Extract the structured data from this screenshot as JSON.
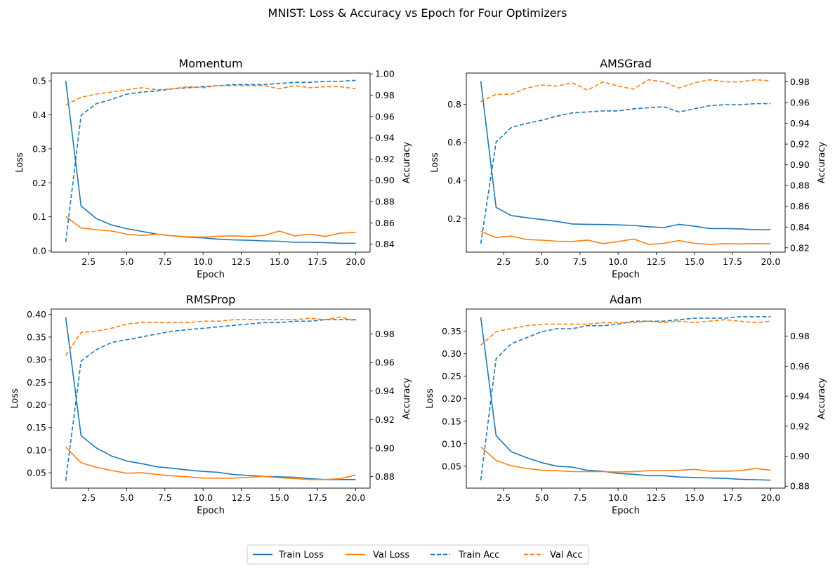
{
  "suptitle": "MNIST: Loss & Accuracy vs Epoch for Four Optimizers",
  "legend": {
    "placement": "bottom-center",
    "entries": [
      {
        "label": "Train Loss",
        "color": "#1f77b4",
        "dash": false
      },
      {
        "label": "Val Loss",
        "color": "#ff7f0e",
        "dash": false
      },
      {
        "label": "Train Acc",
        "color": "#1f77b4",
        "dash": true
      },
      {
        "label": "Val Acc",
        "color": "#ff7f0e",
        "dash": true
      }
    ]
  },
  "chart_data": [
    {
      "type": "line",
      "title": "Momentum",
      "xlabel": "Epoch",
      "ylabel": "Loss",
      "y2label": "Accuracy",
      "xlim": [
        0.05,
        20.95
      ],
      "xticks": [
        2.5,
        5.0,
        7.5,
        10.0,
        12.5,
        15.0,
        17.5,
        20.0
      ],
      "ylim": [
        -0.004,
        0.523
      ],
      "yticks": [
        0.0,
        0.1,
        0.2,
        0.3,
        0.4,
        0.5
      ],
      "ydecimals": 1,
      "y2lim": [
        0.8325,
        1.0008
      ],
      "y2ticks": [
        0.84,
        0.86,
        0.88,
        0.9,
        0.92,
        0.94,
        0.96,
        0.98,
        1.0
      ],
      "y2decimals": 2,
      "x": [
        1,
        2,
        3,
        4,
        5,
        6,
        7,
        8,
        9,
        10,
        11,
        12,
        13,
        14,
        15,
        16,
        17,
        18,
        19,
        20
      ],
      "series": [
        {
          "name": "Train Loss",
          "axis": "left",
          "color": "#1f77b4",
          "dash": false,
          "values": [
            0.5,
            0.132,
            0.095,
            0.076,
            0.065,
            0.057,
            0.049,
            0.044,
            0.04,
            0.038,
            0.034,
            0.032,
            0.031,
            0.029,
            0.028,
            0.025,
            0.025,
            0.024,
            0.022,
            0.022
          ]
        },
        {
          "name": "Val Loss",
          "axis": "left",
          "color": "#ff7f0e",
          "dash": false,
          "values": [
            0.101,
            0.067,
            0.062,
            0.058,
            0.049,
            0.045,
            0.049,
            0.044,
            0.041,
            0.04,
            0.043,
            0.044,
            0.042,
            0.045,
            0.058,
            0.044,
            0.049,
            0.042,
            0.052,
            0.054
          ]
        },
        {
          "name": "Train Acc",
          "axis": "right",
          "color": "#1f77b4",
          "dash": true,
          "values": [
            0.842,
            0.961,
            0.972,
            0.976,
            0.981,
            0.983,
            0.984,
            0.986,
            0.987,
            0.988,
            0.989,
            0.99,
            0.99,
            0.99,
            0.991,
            0.992,
            0.992,
            0.993,
            0.993,
            0.994
          ]
        },
        {
          "name": "Val Acc",
          "axis": "right",
          "color": "#ff7f0e",
          "dash": true,
          "values": [
            0.971,
            0.978,
            0.981,
            0.983,
            0.985,
            0.987,
            0.985,
            0.986,
            0.988,
            0.987,
            0.989,
            0.989,
            0.989,
            0.989,
            0.986,
            0.989,
            0.987,
            0.988,
            0.988,
            0.986
          ]
        }
      ]
    },
    {
      "type": "line",
      "title": "AMSGrad",
      "xlabel": "Epoch",
      "ylabel": "Loss",
      "y2label": "Accuracy",
      "xlim": [
        0.05,
        20.95
      ],
      "xticks": [
        2.5,
        5.0,
        7.5,
        10.0,
        12.5,
        15.0,
        17.5,
        20.0
      ],
      "ylim": [
        0.024,
        0.964
      ],
      "yticks": [
        0.2,
        0.4,
        0.6,
        0.8
      ],
      "ydecimals": 1,
      "y2lim": [
        0.8158,
        0.9885
      ],
      "y2ticks": [
        0.82,
        0.84,
        0.86,
        0.88,
        0.9,
        0.92,
        0.94,
        0.96,
        0.98
      ],
      "y2decimals": 2,
      "x": [
        1,
        2,
        3,
        4,
        5,
        6,
        7,
        8,
        9,
        10,
        11,
        12,
        13,
        14,
        15,
        16,
        17,
        18,
        19,
        20
      ],
      "series": [
        {
          "name": "Train Loss",
          "axis": "left",
          "color": "#1f77b4",
          "dash": false,
          "values": [
            0.922,
            0.259,
            0.216,
            0.205,
            0.195,
            0.185,
            0.172,
            0.17,
            0.169,
            0.167,
            0.164,
            0.157,
            0.153,
            0.17,
            0.16,
            0.148,
            0.148,
            0.146,
            0.142,
            0.142
          ]
        },
        {
          "name": "Val Loss",
          "axis": "left",
          "color": "#ff7f0e",
          "dash": false,
          "values": [
            0.133,
            0.101,
            0.108,
            0.09,
            0.087,
            0.081,
            0.08,
            0.087,
            0.069,
            0.079,
            0.093,
            0.065,
            0.07,
            0.085,
            0.07,
            0.065,
            0.068,
            0.067,
            0.069,
            0.068
          ]
        },
        {
          "name": "Train Acc",
          "axis": "right",
          "color": "#1f77b4",
          "dash": true,
          "values": [
            0.824,
            0.922,
            0.936,
            0.94,
            0.943,
            0.947,
            0.95,
            0.951,
            0.952,
            0.952,
            0.954,
            0.955,
            0.956,
            0.951,
            0.954,
            0.957,
            0.958,
            0.958,
            0.959,
            0.959
          ]
        },
        {
          "name": "Val Acc",
          "axis": "right",
          "color": "#ff7f0e",
          "dash": true,
          "values": [
            0.961,
            0.968,
            0.968,
            0.974,
            0.977,
            0.976,
            0.979,
            0.972,
            0.98,
            0.976,
            0.973,
            0.982,
            0.98,
            0.974,
            0.979,
            0.982,
            0.98,
            0.98,
            0.982,
            0.981
          ]
        }
      ]
    },
    {
      "type": "line",
      "title": "RMSProp",
      "xlabel": "Epoch",
      "ylabel": "Loss",
      "y2label": "Accuracy",
      "xlim": [
        0.05,
        20.95
      ],
      "xticks": [
        2.5,
        5.0,
        7.5,
        10.0,
        12.5,
        15.0,
        17.5,
        20.0
      ],
      "ylim": [
        0.016,
        0.412
      ],
      "yticks": [
        0.05,
        0.1,
        0.15,
        0.2,
        0.25,
        0.3,
        0.35,
        0.4
      ],
      "ydecimals": 2,
      "y2lim": [
        0.8719,
        0.9975
      ],
      "y2ticks": [
        0.88,
        0.9,
        0.92,
        0.94,
        0.96,
        0.98
      ],
      "y2decimals": 2,
      "x": [
        1,
        2,
        3,
        4,
        5,
        6,
        7,
        8,
        9,
        10,
        11,
        12,
        13,
        14,
        15,
        16,
        17,
        18,
        19,
        20
      ],
      "series": [
        {
          "name": "Train Loss",
          "axis": "left",
          "color": "#1f77b4",
          "dash": false,
          "values": [
            0.394,
            0.132,
            0.105,
            0.087,
            0.076,
            0.07,
            0.063,
            0.06,
            0.056,
            0.053,
            0.051,
            0.046,
            0.044,
            0.042,
            0.041,
            0.04,
            0.037,
            0.035,
            0.035,
            0.035
          ]
        },
        {
          "name": "Val Loss",
          "axis": "left",
          "color": "#ff7f0e",
          "dash": false,
          "values": [
            0.107,
            0.072,
            0.062,
            0.055,
            0.049,
            0.05,
            0.046,
            0.043,
            0.041,
            0.038,
            0.038,
            0.038,
            0.04,
            0.042,
            0.039,
            0.037,
            0.035,
            0.035,
            0.037,
            0.045
          ]
        },
        {
          "name": "Train Acc",
          "axis": "right",
          "color": "#1f77b4",
          "dash": true,
          "values": [
            0.877,
            0.961,
            0.969,
            0.974,
            0.976,
            0.978,
            0.98,
            0.982,
            0.983,
            0.984,
            0.985,
            0.986,
            0.987,
            0.988,
            0.988,
            0.989,
            0.989,
            0.99,
            0.99,
            0.99
          ]
        },
        {
          "name": "Val Acc",
          "axis": "right",
          "color": "#ff7f0e",
          "dash": true,
          "values": [
            0.965,
            0.981,
            0.982,
            0.984,
            0.987,
            0.988,
            0.988,
            0.988,
            0.988,
            0.989,
            0.989,
            0.99,
            0.99,
            0.99,
            0.99,
            0.99,
            0.991,
            0.99,
            0.992,
            0.989
          ]
        }
      ]
    },
    {
      "type": "line",
      "title": "Adam",
      "xlabel": "Epoch",
      "ylabel": "Loss",
      "y2label": "Accuracy",
      "xlim": [
        0.05,
        20.95
      ],
      "xticks": [
        2.5,
        5.0,
        7.5,
        10.0,
        12.5,
        15.0,
        17.5,
        20.0
      ],
      "ylim": [
        0.0013,
        0.3994
      ],
      "yticks": [
        0.05,
        0.1,
        0.15,
        0.2,
        0.25,
        0.3,
        0.35
      ],
      "ydecimals": 2,
      "y2lim": [
        0.8787,
        0.9981
      ],
      "y2ticks": [
        0.88,
        0.9,
        0.92,
        0.94,
        0.96,
        0.98
      ],
      "y2decimals": 2,
      "x": [
        1,
        2,
        3,
        4,
        5,
        6,
        7,
        8,
        9,
        10,
        11,
        12,
        13,
        14,
        15,
        16,
        17,
        18,
        19,
        20
      ],
      "series": [
        {
          "name": "Train Loss",
          "axis": "left",
          "color": "#1f77b4",
          "dash": false,
          "values": [
            0.381,
            0.118,
            0.082,
            0.069,
            0.058,
            0.05,
            0.048,
            0.041,
            0.039,
            0.034,
            0.032,
            0.029,
            0.029,
            0.026,
            0.025,
            0.024,
            0.023,
            0.021,
            0.02,
            0.019
          ]
        },
        {
          "name": "Val Loss",
          "axis": "left",
          "color": "#ff7f0e",
          "dash": false,
          "values": [
            0.093,
            0.063,
            0.051,
            0.045,
            0.041,
            0.04,
            0.038,
            0.038,
            0.038,
            0.037,
            0.038,
            0.04,
            0.04,
            0.041,
            0.043,
            0.039,
            0.039,
            0.04,
            0.045,
            0.041
          ]
        },
        {
          "name": "Train Acc",
          "axis": "right",
          "color": "#1f77b4",
          "dash": true,
          "values": [
            0.884,
            0.965,
            0.975,
            0.979,
            0.983,
            0.985,
            0.985,
            0.987,
            0.987,
            0.988,
            0.99,
            0.99,
            0.99,
            0.991,
            0.992,
            0.992,
            0.992,
            0.993,
            0.993,
            0.993
          ]
        },
        {
          "name": "Val Acc",
          "axis": "right",
          "color": "#ff7f0e",
          "dash": true,
          "values": [
            0.974,
            0.983,
            0.985,
            0.987,
            0.988,
            0.988,
            0.988,
            0.988,
            0.989,
            0.989,
            0.989,
            0.99,
            0.989,
            0.99,
            0.989,
            0.99,
            0.991,
            0.99,
            0.989,
            0.99
          ]
        }
      ]
    }
  ]
}
